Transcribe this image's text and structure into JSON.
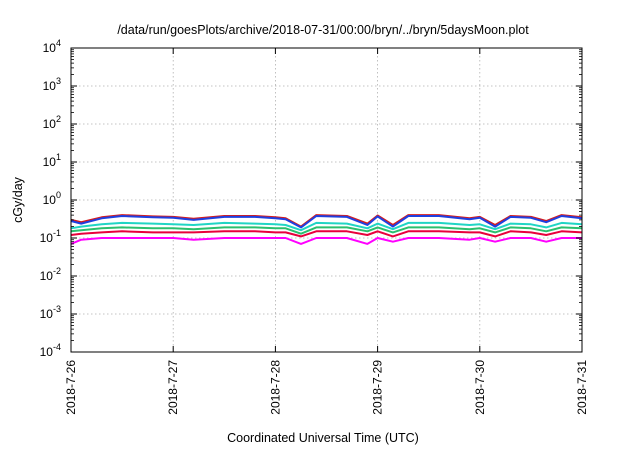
{
  "chart_data": {
    "type": "line",
    "title": "/data/run/goesPlots/archive/2018-07-31/00:00/bryn/../bryn/5daysMoon.plot",
    "xlabel": "Coordinated Universal Time (UTC)",
    "ylabel": "cGy/day",
    "yscale": "log",
    "ylim": [
      0.0001,
      10000
    ],
    "y_ticks": [
      {
        "value": 0.0001,
        "mantissa": "10",
        "exp": "-4"
      },
      {
        "value": 0.001,
        "mantissa": "10",
        "exp": "-3"
      },
      {
        "value": 0.01,
        "mantissa": "10",
        "exp": "-2"
      },
      {
        "value": 0.1,
        "mantissa": "10",
        "exp": "-1"
      },
      {
        "value": 1,
        "mantissa": "10",
        "exp": "0"
      },
      {
        "value": 10,
        "mantissa": "10",
        "exp": "1"
      },
      {
        "value": 100,
        "mantissa": "10",
        "exp": "2"
      },
      {
        "value": 1000,
        "mantissa": "10",
        "exp": "3"
      },
      {
        "value": 10000,
        "mantissa": "10",
        "exp": "4"
      }
    ],
    "xlim": [
      "2018-07-26",
      "2018-07-31"
    ],
    "x_ticks": [
      "2018-7-26",
      "2018-7-27",
      "2018-7-28",
      "2018-7-29",
      "2018-7-30",
      "2018-7-31"
    ],
    "grid": true,
    "legend": "none",
    "series": [
      {
        "color": "#ff00ff",
        "x": [
          26.0,
          26.1,
          26.3,
          26.5,
          26.8,
          27.0,
          27.2,
          27.5,
          27.8,
          28.0,
          28.1,
          28.25,
          28.4,
          28.7,
          28.9,
          29.0,
          29.15,
          29.3,
          29.6,
          29.9,
          30.0,
          30.15,
          30.3,
          30.5,
          30.65,
          30.8,
          31.0
        ],
        "y": [
          0.07,
          0.09,
          0.1,
          0.1,
          0.1,
          0.1,
          0.09,
          0.1,
          0.1,
          0.1,
          0.1,
          0.07,
          0.1,
          0.1,
          0.07,
          0.1,
          0.08,
          0.1,
          0.1,
          0.09,
          0.1,
          0.08,
          0.1,
          0.1,
          0.08,
          0.1,
          0.1
        ]
      },
      {
        "color": "#e8003c",
        "x": [
          26.0,
          26.1,
          26.3,
          26.5,
          26.8,
          27.0,
          27.2,
          27.5,
          27.8,
          28.0,
          28.1,
          28.25,
          28.4,
          28.7,
          28.9,
          29.0,
          29.15,
          29.3,
          29.6,
          29.9,
          30.0,
          30.15,
          30.3,
          30.5,
          30.65,
          30.8,
          31.0
        ],
        "y": [
          0.12,
          0.13,
          0.14,
          0.15,
          0.14,
          0.14,
          0.14,
          0.15,
          0.15,
          0.14,
          0.14,
          0.11,
          0.15,
          0.15,
          0.12,
          0.15,
          0.11,
          0.15,
          0.15,
          0.14,
          0.14,
          0.11,
          0.15,
          0.14,
          0.12,
          0.15,
          0.14
        ]
      },
      {
        "color": "#2bbf6e",
        "x": [
          26.0,
          26.1,
          26.3,
          26.5,
          26.8,
          27.0,
          27.2,
          27.5,
          27.8,
          28.0,
          28.1,
          28.25,
          28.4,
          28.7,
          28.9,
          29.0,
          29.15,
          29.3,
          29.6,
          29.9,
          30.0,
          30.15,
          30.3,
          30.5,
          30.65,
          30.8,
          31.0
        ],
        "y": [
          0.15,
          0.16,
          0.18,
          0.19,
          0.18,
          0.18,
          0.17,
          0.19,
          0.19,
          0.18,
          0.18,
          0.13,
          0.19,
          0.19,
          0.15,
          0.19,
          0.14,
          0.19,
          0.19,
          0.17,
          0.18,
          0.14,
          0.19,
          0.18,
          0.15,
          0.19,
          0.18
        ]
      },
      {
        "color": "#20d5c4",
        "x": [
          26.0,
          26.1,
          26.3,
          26.5,
          26.8,
          27.0,
          27.2,
          27.5,
          27.8,
          28.0,
          28.1,
          28.25,
          28.4,
          28.7,
          28.9,
          29.0,
          29.15,
          29.3,
          29.6,
          29.9,
          30.0,
          30.15,
          30.3,
          30.5,
          30.65,
          30.8,
          31.0
        ],
        "y": [
          0.18,
          0.2,
          0.23,
          0.25,
          0.24,
          0.23,
          0.22,
          0.25,
          0.24,
          0.23,
          0.22,
          0.16,
          0.25,
          0.24,
          0.18,
          0.24,
          0.17,
          0.25,
          0.25,
          0.22,
          0.23,
          0.17,
          0.24,
          0.23,
          0.19,
          0.25,
          0.23
        ]
      },
      {
        "color": "#d81b1b",
        "x": [
          26.0,
          26.1,
          26.3,
          26.5,
          26.8,
          27.0,
          27.2,
          27.5,
          27.8,
          28.0,
          28.1,
          28.25,
          28.4,
          28.7,
          28.9,
          29.0,
          29.15,
          29.3,
          29.6,
          29.9,
          30.0,
          30.15,
          30.3,
          30.5,
          30.65,
          30.8,
          31.0
        ],
        "y": [
          0.3,
          0.26,
          0.35,
          0.4,
          0.37,
          0.36,
          0.32,
          0.38,
          0.38,
          0.35,
          0.33,
          0.2,
          0.4,
          0.38,
          0.24,
          0.39,
          0.22,
          0.4,
          0.4,
          0.33,
          0.36,
          0.22,
          0.38,
          0.36,
          0.28,
          0.4,
          0.35
        ]
      },
      {
        "color": "#1f3fe0",
        "x": [
          26.0,
          26.1,
          26.3,
          26.5,
          26.8,
          27.0,
          27.2,
          27.5,
          27.8,
          28.0,
          28.1,
          28.25,
          28.4,
          28.7,
          28.9,
          29.0,
          29.15,
          29.3,
          29.6,
          29.9,
          30.0,
          30.15,
          30.3,
          30.5,
          30.65,
          30.8,
          31.0
        ],
        "y": [
          0.28,
          0.24,
          0.33,
          0.38,
          0.35,
          0.34,
          0.3,
          0.36,
          0.36,
          0.33,
          0.31,
          0.19,
          0.38,
          0.36,
          0.22,
          0.37,
          0.2,
          0.38,
          0.38,
          0.31,
          0.34,
          0.2,
          0.36,
          0.34,
          0.26,
          0.38,
          0.33
        ]
      }
    ]
  }
}
